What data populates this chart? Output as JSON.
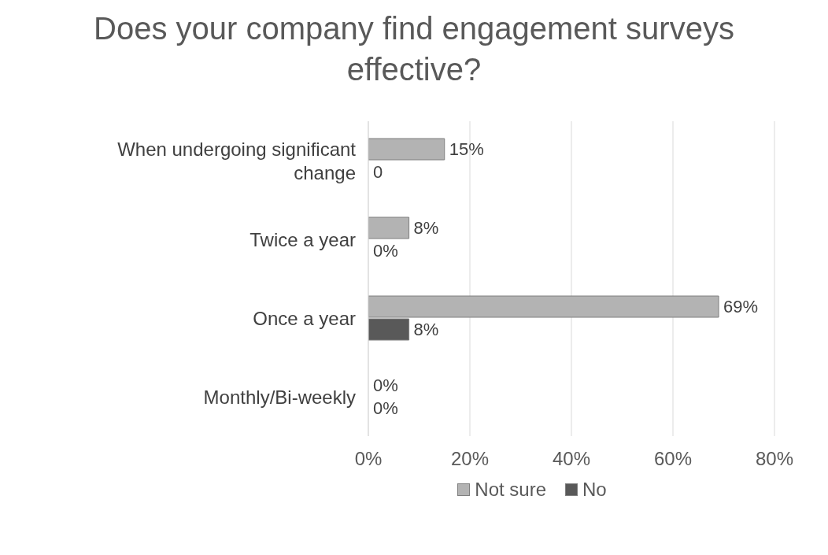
{
  "chart_data": {
    "type": "bar",
    "orientation": "horizontal",
    "title": "Does your company find engagement surveys effective?",
    "categories": [
      "When undergoing significant change",
      "Twice a year",
      "Once a year",
      "Monthly/Bi-weekly"
    ],
    "series": [
      {
        "name": "Not sure",
        "color": "#b3b3b3",
        "values": [
          15,
          8,
          69,
          0
        ],
        "value_labels": [
          "15%",
          "8%",
          "69%",
          "0%"
        ]
      },
      {
        "name": "No",
        "color": "#595959",
        "values": [
          0,
          0,
          8,
          0
        ],
        "value_labels": [
          "0",
          "0%",
          "8%",
          "0%"
        ]
      }
    ],
    "xlim": [
      0,
      80
    ],
    "xticks": [
      {
        "value": 0,
        "label": "0%"
      },
      {
        "value": 20,
        "label": "20%"
      },
      {
        "value": 40,
        "label": "40%"
      },
      {
        "value": 60,
        "label": "60%"
      },
      {
        "value": 80,
        "label": "80%"
      }
    ],
    "grid": "x",
    "legend": "bottom"
  }
}
